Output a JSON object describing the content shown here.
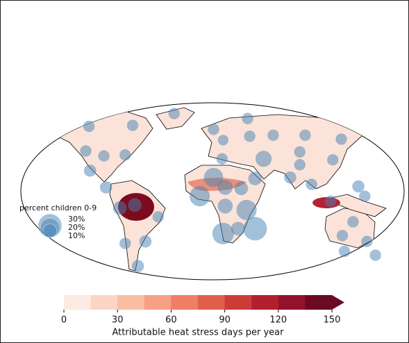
{
  "map": {
    "projection": "robinson",
    "legend": {
      "title": "percent children 0-9",
      "sizes": [
        {
          "value": 30,
          "label": "30%"
        },
        {
          "value": 20,
          "label": "20%"
        },
        {
          "value": 10,
          "label": "10%"
        }
      ],
      "bubble_color": "#4682b4"
    },
    "bubbles": [
      {
        "lon": -36,
        "lat": 79,
        "value": 7
      },
      {
        "lon": -75,
        "lat": 67,
        "value": 7
      },
      {
        "lon": -116,
        "lat": 66,
        "value": 7
      },
      {
        "lon": -119,
        "lat": 41,
        "value": 7
      },
      {
        "lon": -102,
        "lat": 36,
        "value": 7
      },
      {
        "lon": -82,
        "lat": 37,
        "value": 7
      },
      {
        "lon": -115,
        "lat": 21,
        "value": 8
      },
      {
        "lon": -100,
        "lat": 4,
        "value": 8
      },
      {
        "lon": -87,
        "lat": -17,
        "value": 10
      },
      {
        "lon": -73,
        "lat": -14,
        "value": 10
      },
      {
        "lon": -51,
        "lat": -26,
        "value": 7
      },
      {
        "lon": -63,
        "lat": -51,
        "value": 8
      },
      {
        "lon": -82,
        "lat": -53,
        "value": 7
      },
      {
        "lon": -70,
        "lat": -76,
        "value": 8
      },
      {
        "lon": 1,
        "lat": 63,
        "value": 7
      },
      {
        "lon": 33,
        "lat": 74,
        "value": 7
      },
      {
        "lon": 10,
        "lat": 52,
        "value": 6
      },
      {
        "lon": 35,
        "lat": 56,
        "value": 7
      },
      {
        "lon": 57,
        "lat": 57,
        "value": 7
      },
      {
        "lon": 87,
        "lat": 57,
        "value": 7
      },
      {
        "lon": 121,
        "lat": 53,
        "value": 7
      },
      {
        "lon": 9,
        "lat": 33,
        "value": 7
      },
      {
        "lon": 48,
        "lat": 33,
        "value": 14
      },
      {
        "lon": 82,
        "lat": 40,
        "value": 7
      },
      {
        "lon": 113,
        "lat": 32,
        "value": 7
      },
      {
        "lon": 82,
        "lat": 27,
        "value": 7
      },
      {
        "lon": 40,
        "lat": 13,
        "value": 10
      },
      {
        "lon": 73,
        "lat": 14,
        "value": 8
      },
      {
        "lon": 1,
        "lat": 14,
        "value": 20
      },
      {
        "lon": -12,
        "lat": -5,
        "value": 22
      },
      {
        "lon": 12,
        "lat": 4,
        "value": 12
      },
      {
        "lon": 27,
        "lat": 3,
        "value": 10
      },
      {
        "lon": 12,
        "lat": -15,
        "value": 12
      },
      {
        "lon": 32,
        "lat": -19,
        "value": 22
      },
      {
        "lon": 10,
        "lat": -43,
        "value": 25
      },
      {
        "lon": 40,
        "lat": -38,
        "value": 30
      },
      {
        "lon": 24,
        "lat": -38,
        "value": 10
      },
      {
        "lon": 93,
        "lat": 7,
        "value": 7
      },
      {
        "lon": 111,
        "lat": -10,
        "value": 7
      },
      {
        "lon": 137,
        "lat": 5,
        "value": 8
      },
      {
        "lon": 143,
        "lat": -5,
        "value": 7
      },
      {
        "lon": 132,
        "lat": -31,
        "value": 7
      },
      {
        "lon": 122,
        "lat": -45,
        "value": 7
      },
      {
        "lon": 124,
        "lat": -61,
        "value": 7
      },
      {
        "lon": 145,
        "lat": -51,
        "value": 7
      },
      {
        "lon": 153,
        "lat": -65,
        "value": 7
      }
    ],
    "colorbar": {
      "label": "Attributable heat stress days per year",
      "lim": [
        0,
        150
      ],
      "ticks": [
        0,
        30,
        60,
        90,
        120,
        150
      ],
      "extend": "max",
      "colors": [
        "#fcebe3",
        "#fbd6c5",
        "#f9bda4",
        "#f6a085",
        "#f07f64",
        "#e0604d",
        "#cc3d3a",
        "#b22030",
        "#94122a",
        "#6b0a20"
      ]
    }
  }
}
